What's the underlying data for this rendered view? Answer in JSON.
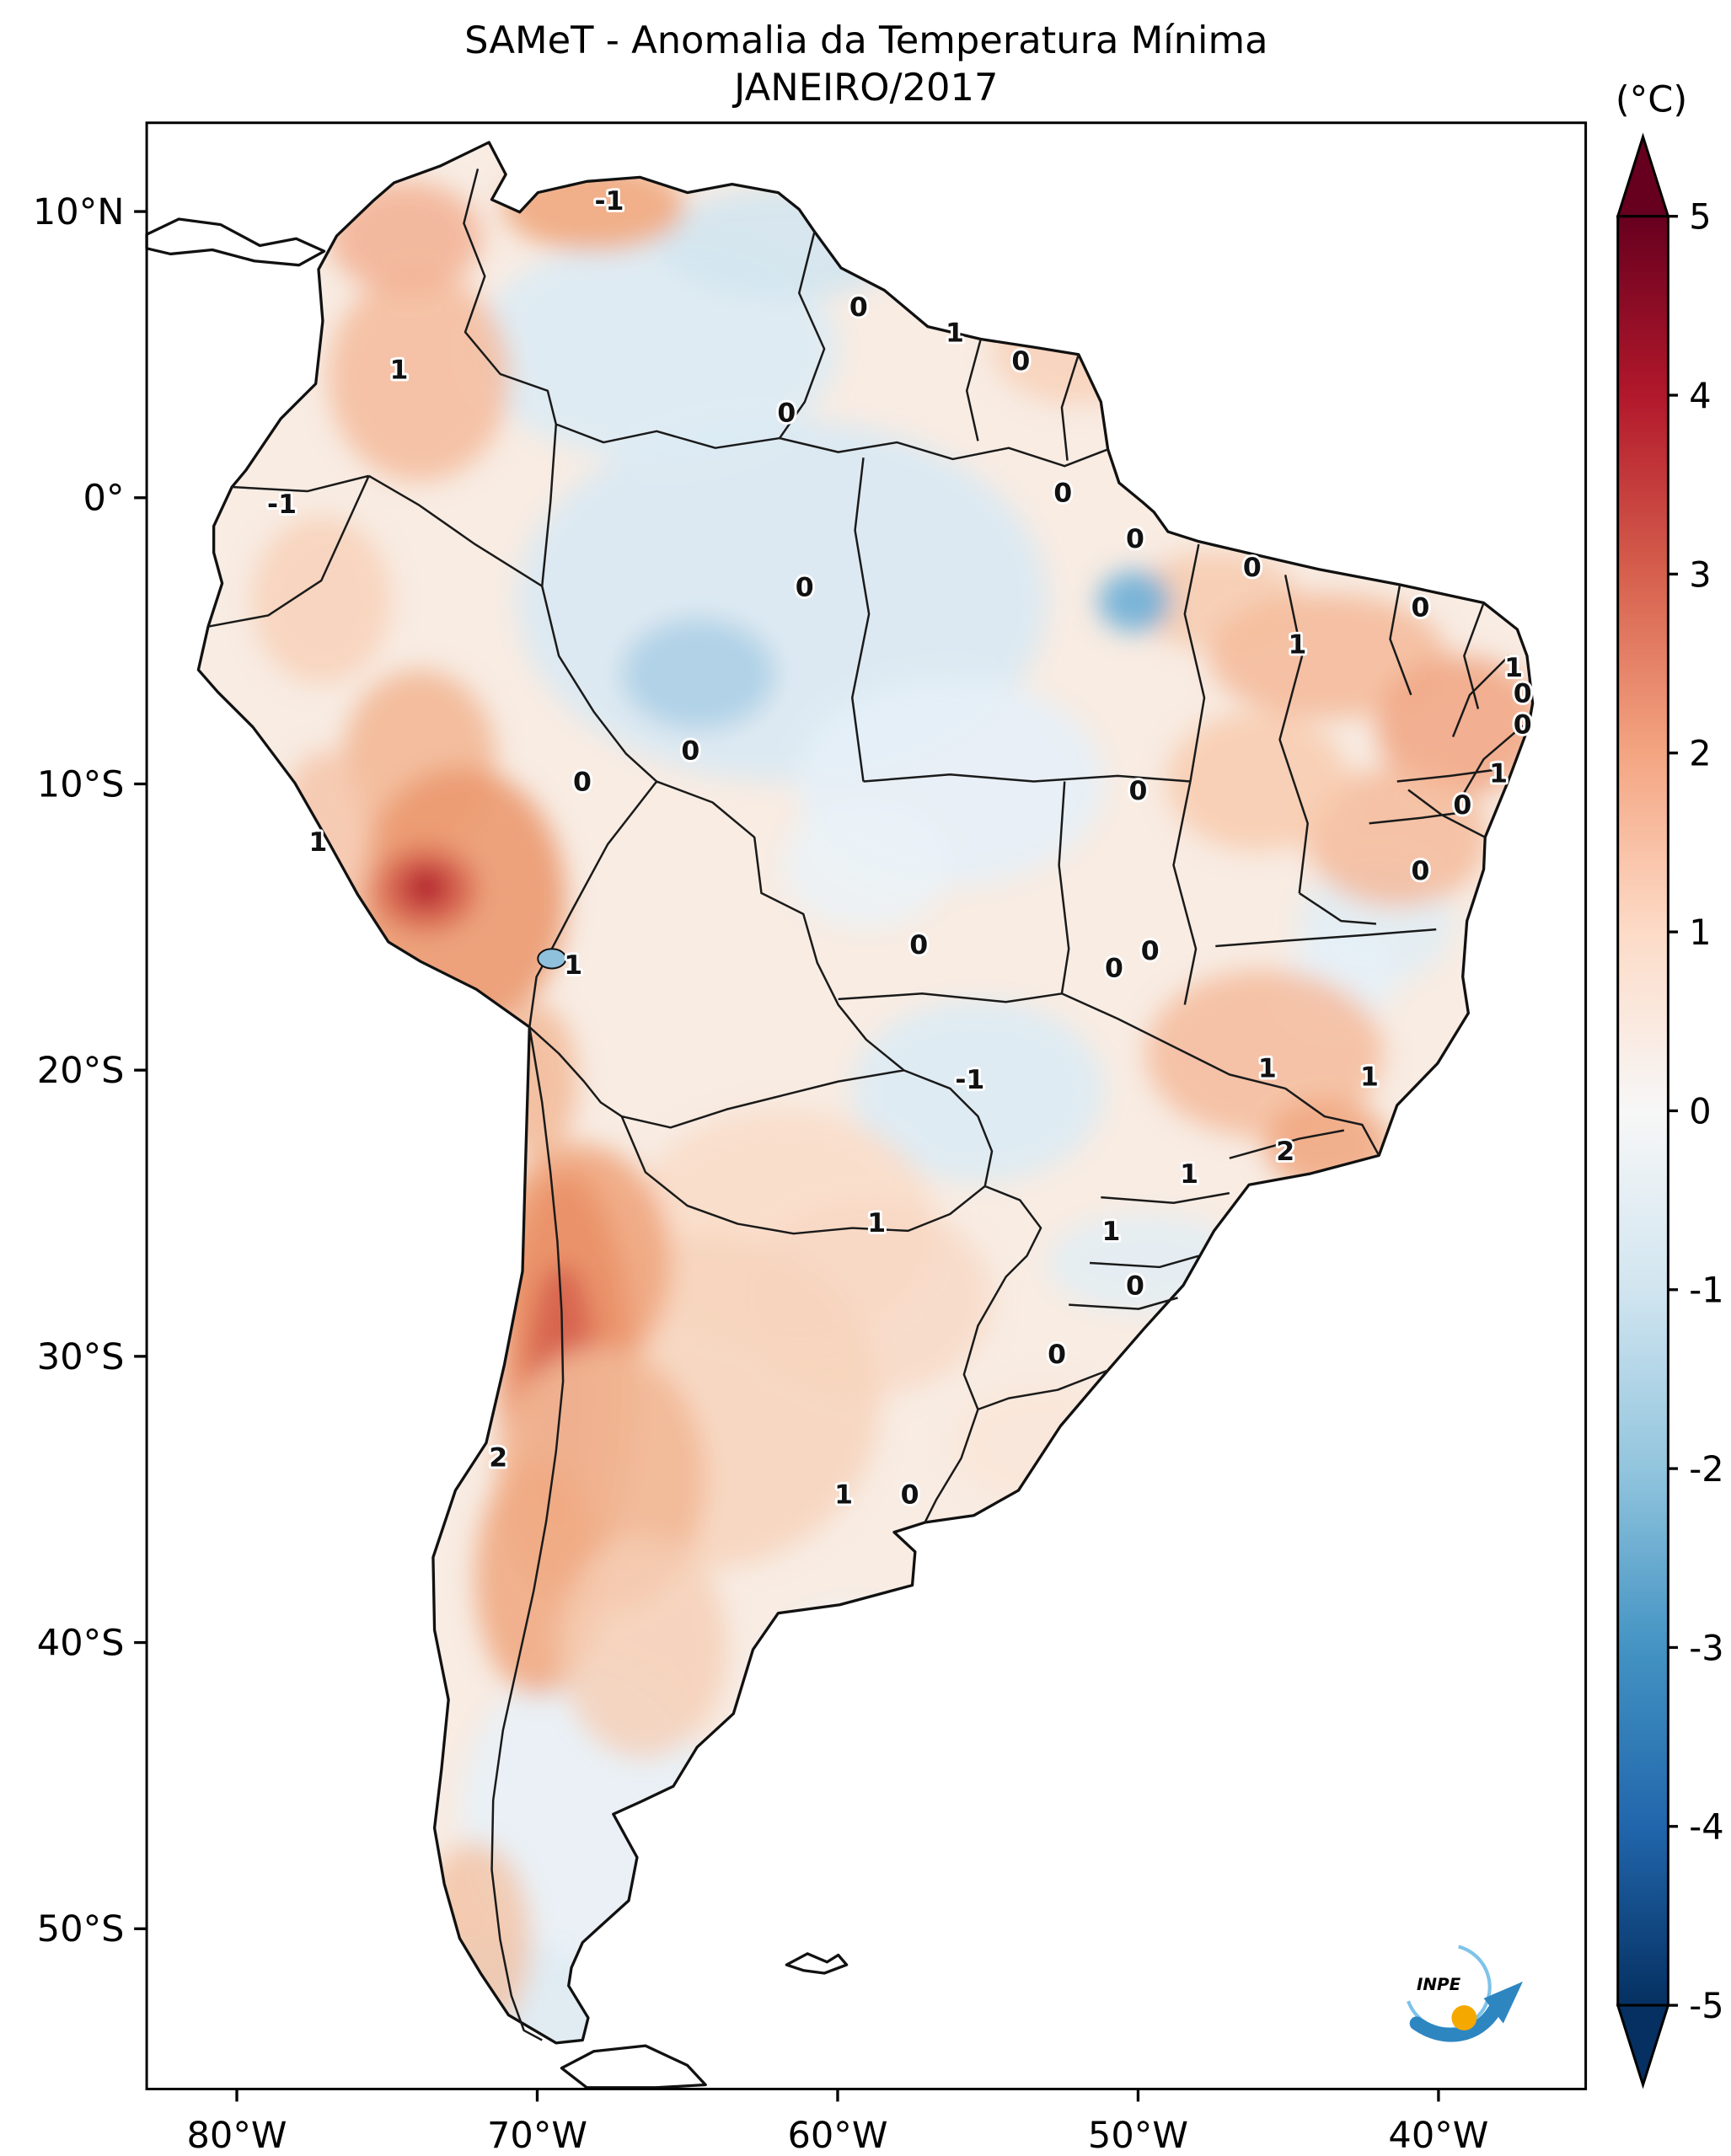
{
  "figure": {
    "title": "SAMeT - Anomalia da Temperatura Mínima",
    "subtitle": "JANEIRO/2017"
  },
  "colorbar": {
    "unit": "(°C)",
    "ticks": [
      5,
      4,
      3,
      2,
      1,
      0,
      -1,
      -2,
      -3,
      -4,
      -5
    ],
    "stops": [
      {
        "v": 5,
        "color": "#67001f"
      },
      {
        "v": 4,
        "color": "#b2182b"
      },
      {
        "v": 3,
        "color": "#d6604d"
      },
      {
        "v": 2,
        "color": "#f4a582"
      },
      {
        "v": 1,
        "color": "#fddbc7"
      },
      {
        "v": 0,
        "color": "#f7f7f7"
      },
      {
        "v": -1,
        "color": "#d1e5f0"
      },
      {
        "v": -2,
        "color": "#92c5de"
      },
      {
        "v": -3,
        "color": "#4393c3"
      },
      {
        "v": -4,
        "color": "#2166ac"
      },
      {
        "v": -5,
        "color": "#053061"
      }
    ],
    "extend_over_color": "#67001f",
    "extend_under_color": "#053061"
  },
  "axes": {
    "lat_range": [
      13.1,
      -55.6
    ],
    "lon_range": [
      -83.0,
      -35.1
    ],
    "lat_ticks": [
      {
        "label": "10°N",
        "value": 10
      },
      {
        "label": "0°",
        "value": 0
      },
      {
        "label": "10°S",
        "value": -10
      },
      {
        "label": "20°S",
        "value": -20
      },
      {
        "label": "30°S",
        "value": -30
      },
      {
        "label": "40°S",
        "value": -40
      },
      {
        "label": "50°S",
        "value": -50
      }
    ],
    "lon_ticks": [
      {
        "label": "80°W",
        "value": -80
      },
      {
        "label": "70°W",
        "value": -70
      },
      {
        "label": "60°W",
        "value": -60
      },
      {
        "label": "50°W",
        "value": -50
      },
      {
        "label": "40°W",
        "value": -40
      }
    ]
  },
  "logo": {
    "text": "INPE"
  },
  "chart_data": {
    "type": "heatmap",
    "title": "SAMeT - Anomalia da Temperatura Mínima",
    "subtitle": "JANEIRO/2017",
    "region": "South America",
    "variable": "Minimum temperature anomaly",
    "unit": "°C",
    "value_range": [
      -5,
      5
    ],
    "colormap": "RdBu_r (blue = negative anomaly, red = positive anomaly)",
    "legend_position": "right",
    "notable_features": [
      "Strong warm anomaly band (up to +2) along central Chile and adjacent Andes, ~25°S–35°S",
      "Warm anomaly core over southern Peru highlands (~13°S)",
      "Weak cool anomalies (~0 to -1) over central Amazon and Mato Grosso do Sul",
      "Small sharp cool spot near 50°W, 4°S",
      "Mostly weak positive anomalies (0 to +1) over northeastern and southeastern Brazil"
    ],
    "annotations": [
      {
        "value": "-1",
        "lon": -67.6,
        "lat": 10.4
      },
      {
        "value": "1",
        "lon": -74.6,
        "lat": 4.5
      },
      {
        "value": "0",
        "lon": -59.3,
        "lat": 6.7
      },
      {
        "value": "1",
        "lon": -56.1,
        "lat": 5.8
      },
      {
        "value": "0",
        "lon": -53.9,
        "lat": 4.8
      },
      {
        "value": "0",
        "lon": -61.7,
        "lat": 3.0
      },
      {
        "value": "-1",
        "lon": -78.5,
        "lat": -0.2
      },
      {
        "value": "0",
        "lon": -52.5,
        "lat": 0.2
      },
      {
        "value": "0",
        "lon": -50.1,
        "lat": -1.4
      },
      {
        "value": "0",
        "lon": -46.2,
        "lat": -2.4
      },
      {
        "value": "0",
        "lon": -61.1,
        "lat": -3.1
      },
      {
        "value": "0",
        "lon": -40.6,
        "lat": -3.8
      },
      {
        "value": "1",
        "lon": -44.7,
        "lat": -5.1
      },
      {
        "value": "1",
        "lon": -37.5,
        "lat": -5.9
      },
      {
        "value": "0",
        "lon": -37.2,
        "lat": -6.8
      },
      {
        "value": "0",
        "lon": -37.2,
        "lat": -7.9
      },
      {
        "value": "0",
        "lon": -64.9,
        "lat": -8.8
      },
      {
        "value": "0",
        "lon": -68.5,
        "lat": -9.9
      },
      {
        "value": "1",
        "lon": -38.0,
        "lat": -9.6
      },
      {
        "value": "0",
        "lon": -39.2,
        "lat": -10.7
      },
      {
        "value": "0",
        "lon": -50.0,
        "lat": -10.2
      },
      {
        "value": "1",
        "lon": -77.3,
        "lat": -12.0
      },
      {
        "value": "0",
        "lon": -40.6,
        "lat": -13.0
      },
      {
        "value": "0",
        "lon": -57.3,
        "lat": -15.6
      },
      {
        "value": "0",
        "lon": -49.6,
        "lat": -15.8
      },
      {
        "value": "0",
        "lon": -50.8,
        "lat": -16.4
      },
      {
        "value": "1",
        "lon": -68.8,
        "lat": -16.3
      },
      {
        "value": "1",
        "lon": -45.7,
        "lat": -19.9
      },
      {
        "value": "1",
        "lon": -42.3,
        "lat": -20.2
      },
      {
        "value": "-1",
        "lon": -55.6,
        "lat": -20.3
      },
      {
        "value": "2",
        "lon": -45.1,
        "lat": -22.8
      },
      {
        "value": "1",
        "lon": -48.3,
        "lat": -23.6
      },
      {
        "value": "1",
        "lon": -58.7,
        "lat": -25.3
      },
      {
        "value": "1",
        "lon": -50.9,
        "lat": -25.6
      },
      {
        "value": "0",
        "lon": -50.1,
        "lat": -27.5
      },
      {
        "value": "0",
        "lon": -52.7,
        "lat": -29.9
      },
      {
        "value": "2",
        "lon": -71.3,
        "lat": -33.5
      },
      {
        "value": "1",
        "lon": -59.8,
        "lat": -34.8
      },
      {
        "value": "0",
        "lon": -57.6,
        "lat": -34.8
      }
    ]
  }
}
